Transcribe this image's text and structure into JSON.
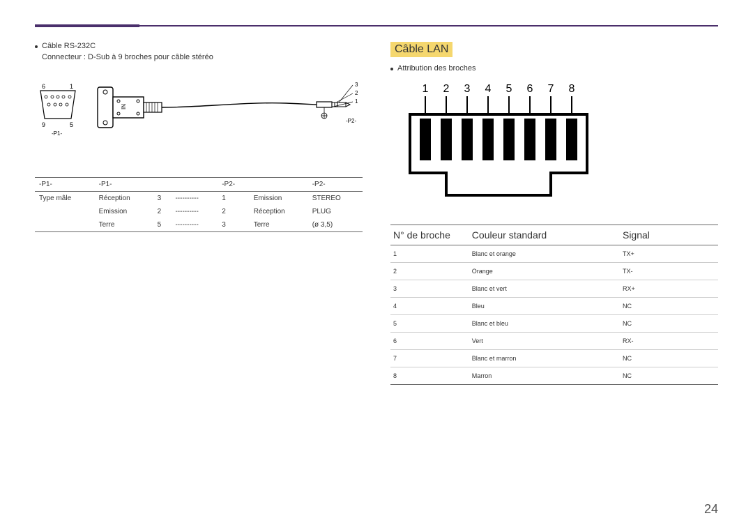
{
  "page_number": "24",
  "left": {
    "bullet": "Câble RS-232C",
    "subtext": "Connecteur : D-Sub à 9 broches pour câble stéréo",
    "diagram": {
      "p1_label": "-P1-",
      "p2_label": "-P2-",
      "dsub_pins_top": [
        "6",
        "1"
      ],
      "dsub_pins_bot": [
        "9",
        "5"
      ],
      "jack_pins": [
        "3",
        "2",
        "1"
      ],
      "in_label": "IN"
    },
    "table": {
      "headers": [
        "-P1-",
        "-P1-",
        "",
        "",
        "-P2-",
        "",
        "-P2-"
      ],
      "rows": [
        [
          "Type mâle",
          "Réception",
          "3",
          "----------",
          "1",
          "Emission",
          "STEREO"
        ],
        [
          "",
          "Emission",
          "2",
          "----------",
          "2",
          "Réception",
          "PLUG"
        ],
        [
          "",
          "Terre",
          "5",
          "----------",
          "3",
          "Terre",
          "(ø 3,5)"
        ]
      ]
    }
  },
  "right": {
    "title": "Câble LAN",
    "bullet": "Attribution des broches",
    "pin_numbers": [
      "1",
      "2",
      "3",
      "4",
      "5",
      "6",
      "7",
      "8"
    ],
    "table": {
      "headers": [
        "N° de broche",
        "Couleur standard",
        "Signal"
      ],
      "col_widths": [
        "24%",
        "46%",
        "30%"
      ],
      "rows": [
        [
          "1",
          "Blanc et orange",
          "TX+"
        ],
        [
          "2",
          "Orange",
          "TX-"
        ],
        [
          "3",
          "Blanc et vert",
          "RX+"
        ],
        [
          "4",
          "Bleu",
          "NC"
        ],
        [
          "5",
          "Blanc et bleu",
          "NC"
        ],
        [
          "6",
          "Vert",
          "RX-"
        ],
        [
          "7",
          "Blanc et marron",
          "NC"
        ],
        [
          "8",
          "Marron",
          "NC"
        ]
      ]
    }
  }
}
